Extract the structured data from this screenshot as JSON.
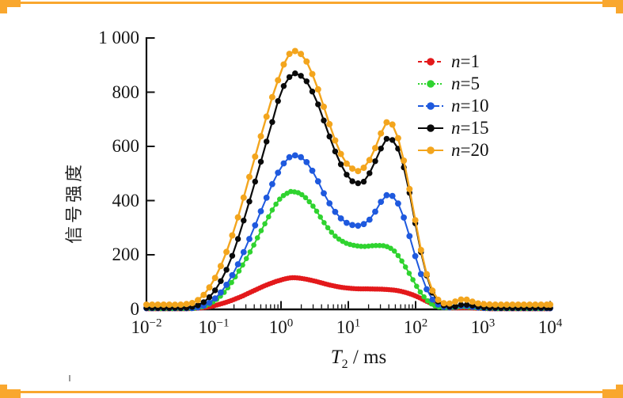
{
  "frame": {
    "accent_color": "#F9A72E"
  },
  "chart_data": {
    "type": "line",
    "title": "",
    "xlabel": "T2 / ms",
    "xlabel_parts": {
      "main": "T",
      "sub": "2",
      "rest": " / ms"
    },
    "ylabel": "信号强度",
    "x_scale": "log10",
    "xlim_log": [
      -2,
      4
    ],
    "ylim": [
      0,
      1000
    ],
    "grid": false,
    "legend_position": "upper right, frameless",
    "y_ticks": [
      {
        "value": 0,
        "label": "0"
      },
      {
        "value": 200,
        "label": "200"
      },
      {
        "value": 400,
        "label": "400"
      },
      {
        "value": 600,
        "label": "600"
      },
      {
        "value": 800,
        "label": "800"
      },
      {
        "value": 1000,
        "label": "1 000"
      }
    ],
    "x_ticks": [
      {
        "u": -2,
        "base": "10",
        "exp": "−2"
      },
      {
        "u": -1,
        "base": "10",
        "exp": "−1"
      },
      {
        "u": 0,
        "base": "10",
        "exp": "0"
      },
      {
        "u": 1,
        "base": "10",
        "exp": "1"
      },
      {
        "u": 2,
        "base": "10",
        "exp": "2"
      },
      {
        "u": 3,
        "base": "10",
        "exp": "3"
      },
      {
        "u": 4,
        "base": "10",
        "exp": "4"
      }
    ],
    "series": [
      {
        "name": "n=1",
        "label_var": "n",
        "label_value": "1",
        "color": "#E3191B",
        "line_width": 5,
        "marker_r": 3.2,
        "step": 0.035,
        "legend_dash": "5 3",
        "points": [
          [
            -2.0,
            1
          ],
          [
            -1.4,
            1
          ],
          [
            -1.2,
            4
          ],
          [
            -1.0,
            12
          ],
          [
            -0.8,
            26
          ],
          [
            -0.6,
            45
          ],
          [
            -0.4,
            68
          ],
          [
            -0.2,
            90
          ],
          [
            0.0,
            107
          ],
          [
            0.15,
            115
          ],
          [
            0.3,
            113
          ],
          [
            0.5,
            103
          ],
          [
            0.7,
            90
          ],
          [
            0.9,
            80
          ],
          [
            1.1,
            75
          ],
          [
            1.3,
            74
          ],
          [
            1.5,
            73
          ],
          [
            1.7,
            69
          ],
          [
            1.85,
            61
          ],
          [
            2.0,
            48
          ],
          [
            2.15,
            30
          ],
          [
            2.3,
            14
          ],
          [
            2.45,
            6
          ],
          [
            2.6,
            4
          ],
          [
            2.75,
            5
          ],
          [
            2.9,
            3
          ],
          [
            3.1,
            1
          ],
          [
            4.0,
            1
          ]
        ]
      },
      {
        "name": "n=5",
        "label_var": "n",
        "label_value": "5",
        "color": "#2FD32F",
        "line_width": 2,
        "marker_r": 3.3,
        "step": 0.055,
        "legend_dash": "2 2",
        "points": [
          [
            -2.0,
            2
          ],
          [
            -1.5,
            2
          ],
          [
            -1.25,
            4
          ],
          [
            -1.05,
            20
          ],
          [
            -0.85,
            60
          ],
          [
            -0.65,
            130
          ],
          [
            -0.45,
            215
          ],
          [
            -0.25,
            310
          ],
          [
            -0.05,
            395
          ],
          [
            0.1,
            428
          ],
          [
            0.17,
            433
          ],
          [
            0.32,
            420
          ],
          [
            0.5,
            372
          ],
          [
            0.65,
            315
          ],
          [
            0.8,
            270
          ],
          [
            0.95,
            245
          ],
          [
            1.1,
            234
          ],
          [
            1.25,
            231
          ],
          [
            1.4,
            234
          ],
          [
            1.55,
            232
          ],
          [
            1.68,
            215
          ],
          [
            1.8,
            175
          ],
          [
            1.92,
            125
          ],
          [
            2.05,
            70
          ],
          [
            2.18,
            30
          ],
          [
            2.3,
            10
          ],
          [
            2.5,
            5
          ],
          [
            2.7,
            9
          ],
          [
            2.85,
            6
          ],
          [
            3.0,
            3
          ],
          [
            3.2,
            2
          ],
          [
            4.0,
            2
          ]
        ]
      },
      {
        "name": "n=10",
        "label_var": "n",
        "label_value": "10",
        "color": "#1E59DE",
        "line_width": 2,
        "marker_r": 3.9,
        "step": 0.085,
        "legend_dash": "7 3",
        "points": [
          [
            -2.0,
            3
          ],
          [
            -1.5,
            3
          ],
          [
            -1.25,
            5
          ],
          [
            -1.05,
            25
          ],
          [
            -0.85,
            75
          ],
          [
            -0.65,
            160
          ],
          [
            -0.45,
            270
          ],
          [
            -0.25,
            390
          ],
          [
            -0.05,
            500
          ],
          [
            0.1,
            553
          ],
          [
            0.2,
            567
          ],
          [
            0.35,
            550
          ],
          [
            0.5,
            495
          ],
          [
            0.65,
            420
          ],
          [
            0.8,
            360
          ],
          [
            0.95,
            322
          ],
          [
            1.1,
            308
          ],
          [
            1.22,
            312
          ],
          [
            1.35,
            340
          ],
          [
            1.5,
            400
          ],
          [
            1.6,
            422
          ],
          [
            1.72,
            398
          ],
          [
            1.85,
            320
          ],
          [
            1.97,
            215
          ],
          [
            2.1,
            115
          ],
          [
            2.22,
            45
          ],
          [
            2.35,
            14
          ],
          [
            2.5,
            6
          ],
          [
            2.7,
            12
          ],
          [
            2.85,
            8
          ],
          [
            3.0,
            4
          ],
          [
            3.2,
            3
          ],
          [
            4.0,
            3
          ]
        ]
      },
      {
        "name": "n=15",
        "label_var": "n",
        "label_value": "15",
        "color": "#0A0A0A",
        "line_width": 2.2,
        "marker_r": 3.7,
        "step": 0.085,
        "legend_dash": "",
        "points": [
          [
            -2.0,
            4
          ],
          [
            -1.6,
            4
          ],
          [
            -1.35,
            6
          ],
          [
            -1.15,
            25
          ],
          [
            -0.95,
            80
          ],
          [
            -0.75,
            180
          ],
          [
            -0.55,
            330
          ],
          [
            -0.35,
            500
          ],
          [
            -0.15,
            670
          ],
          [
            0.0,
            800
          ],
          [
            0.15,
            862
          ],
          [
            0.22,
            868
          ],
          [
            0.38,
            840
          ],
          [
            0.55,
            755
          ],
          [
            0.7,
            650
          ],
          [
            0.85,
            555
          ],
          [
            1.0,
            487
          ],
          [
            1.12,
            465
          ],
          [
            1.25,
            475
          ],
          [
            1.4,
            545
          ],
          [
            1.55,
            620
          ],
          [
            1.63,
            628
          ],
          [
            1.75,
            585
          ],
          [
            1.88,
            465
          ],
          [
            2.0,
            310
          ],
          [
            2.12,
            165
          ],
          [
            2.25,
            60
          ],
          [
            2.38,
            18
          ],
          [
            2.55,
            8
          ],
          [
            2.7,
            16
          ],
          [
            2.85,
            12
          ],
          [
            3.0,
            6
          ],
          [
            3.2,
            4
          ],
          [
            4.0,
            4
          ]
        ]
      },
      {
        "name": "n=20",
        "label_var": "n",
        "label_value": "20",
        "color": "#F3A51D",
        "line_width": 2.4,
        "marker_r": 4.0,
        "step": 0.085,
        "legend_dash": "",
        "points": [
          [
            -2.0,
            16
          ],
          [
            -1.7,
            16
          ],
          [
            -1.45,
            17
          ],
          [
            -1.25,
            30
          ],
          [
            -1.05,
            85
          ],
          [
            -0.85,
            185
          ],
          [
            -0.65,
            330
          ],
          [
            -0.45,
            505
          ],
          [
            -0.25,
            680
          ],
          [
            -0.05,
            840
          ],
          [
            0.1,
            930
          ],
          [
            0.2,
            952
          ],
          [
            0.35,
            925
          ],
          [
            0.5,
            845
          ],
          [
            0.65,
            735
          ],
          [
            0.8,
            625
          ],
          [
            0.95,
            545
          ],
          [
            1.1,
            513
          ],
          [
            1.2,
            515
          ],
          [
            1.35,
            565
          ],
          [
            1.5,
            655
          ],
          [
            1.6,
            692
          ],
          [
            1.72,
            645
          ],
          [
            1.85,
            520
          ],
          [
            1.97,
            360
          ],
          [
            2.1,
            195
          ],
          [
            2.22,
            85
          ],
          [
            2.35,
            30
          ],
          [
            2.5,
            20
          ],
          [
            2.65,
            33
          ],
          [
            2.75,
            35
          ],
          [
            2.9,
            22
          ],
          [
            3.05,
            17
          ],
          [
            3.3,
            16
          ],
          [
            3.6,
            16
          ],
          [
            4.0,
            16
          ]
        ]
      }
    ]
  }
}
